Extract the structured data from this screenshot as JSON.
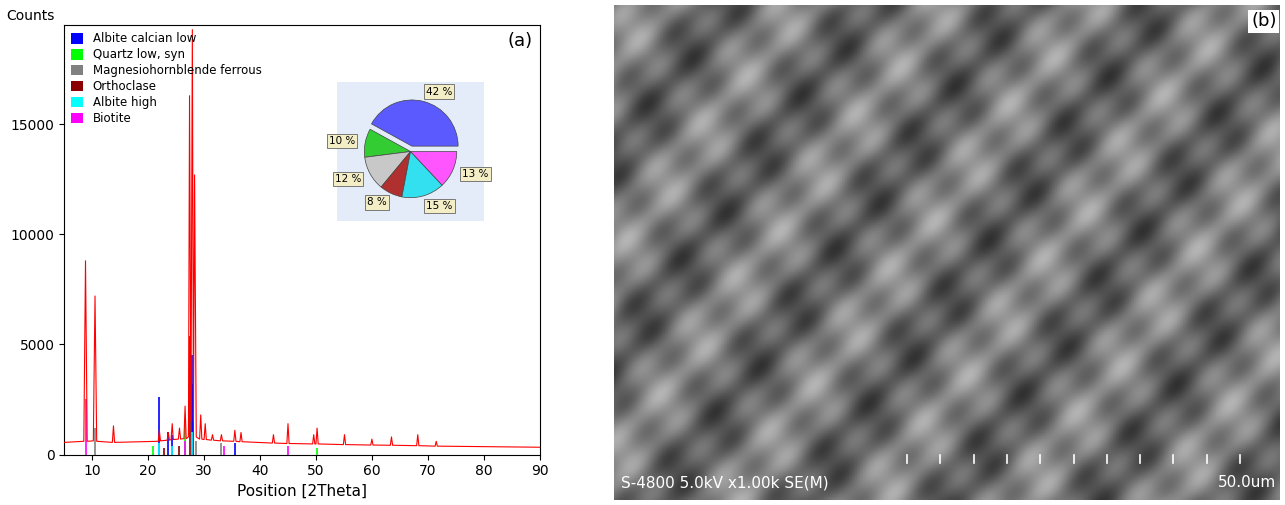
{
  "chart_data": [
    {
      "type": "line",
      "panel_label": "(a)",
      "ylabel": "Counts",
      "xlabel": "Position [2Theta]",
      "xlim": [
        5,
        90
      ],
      "ylim": [
        0,
        19500
      ],
      "xticks": [
        10,
        20,
        30,
        40,
        50,
        60,
        70,
        80,
        90
      ],
      "yticks": [
        0,
        5000,
        10000,
        15000
      ],
      "legend": "upper left",
      "series": [
        {
          "type": "line",
          "color": "#ff0000",
          "x": [
            5,
            8.5,
            8.8,
            9.1,
            10.2,
            10.5,
            10.8,
            13.6,
            13.8,
            14.0,
            21.8,
            22.0,
            22.2,
            23.4,
            23.6,
            23.8,
            24.1,
            24.3,
            24.5,
            25.4,
            25.6,
            25.8,
            26.4,
            26.6,
            26.8,
            27.2,
            27.4,
            27.65,
            27.9,
            28.1,
            28.3,
            28.6,
            29.2,
            29.4,
            29.6,
            30.0,
            30.2,
            30.4,
            31.3,
            31.5,
            31.7,
            32.9,
            33.1,
            33.3,
            35.3,
            35.5,
            35.7,
            36.4,
            36.6,
            36.8,
            42.2,
            42.4,
            42.6,
            44.8,
            45.0,
            45.2,
            49.4,
            49.6,
            49.8,
            50.0,
            50.2,
            50.4,
            54.9,
            55.1,
            55.3,
            59.8,
            60.0,
            60.2,
            63.3,
            63.5,
            63.7,
            68.0,
            68.2,
            68.4,
            71.3,
            71.5,
            71.7,
            90
          ],
          "values": [
            550,
            600,
            8800,
            600,
            620,
            7200,
            600,
            550,
            1300,
            550,
            600,
            1100,
            620,
            650,
            1000,
            650,
            680,
            1400,
            680,
            700,
            1200,
            700,
            720,
            2200,
            720,
            800,
            16300,
            1500,
            19300,
            1500,
            12700,
            800,
            700,
            1800,
            700,
            680,
            1400,
            680,
            650,
            900,
            650,
            620,
            900,
            620,
            600,
            1100,
            600,
            580,
            1000,
            580,
            520,
            900,
            520,
            500,
            1400,
            500,
            480,
            900,
            480,
            480,
            1200,
            480,
            450,
            900,
            450,
            430,
            700,
            430,
            420,
            800,
            420,
            400,
            900,
            400,
            380,
            600,
            380,
            330
          ]
        },
        {
          "type": "stem",
          "name": "Albite calcian low",
          "color": "#0000ff",
          "x": [
            22.0,
            23.6,
            24.3,
            27.9,
            28.1,
            35.5
          ],
          "values": [
            2600,
            1000,
            900,
            4500,
            3200,
            500
          ]
        },
        {
          "type": "stem",
          "name": "Quartz low, syn",
          "color": "#00ff00",
          "x": [
            20.9,
            26.6,
            50.1
          ],
          "values": [
            400,
            1500,
            300
          ]
        },
        {
          "type": "stem",
          "name": "Magnesiohornblende ferrous",
          "color": "#808080",
          "x": [
            10.5,
            28.6,
            33.1
          ],
          "values": [
            1200,
            600,
            500
          ]
        },
        {
          "type": "stem",
          "name": "Orthoclase",
          "color": "#8b0000",
          "x": [
            22.8,
            25.6,
            27.5
          ],
          "values": [
            300,
            400,
            5400
          ]
        },
        {
          "type": "stem",
          "name": "Albite high",
          "color": "#00ffff",
          "x": [
            22.0,
            24.2,
            27.8
          ],
          "values": [
            500,
            400,
            1000
          ]
        },
        {
          "type": "stem",
          "name": "Biotite",
          "color": "#ff00ff",
          "x": [
            8.8,
            26.6,
            33.6,
            45.0
          ],
          "values": [
            2500,
            600,
            400,
            400
          ]
        }
      ]
    },
    {
      "type": "pie",
      "values": [
        42,
        10,
        12,
        8,
        15,
        13
      ],
      "value_labels": [
        "42 %",
        "10 %",
        "12 %",
        "8 %",
        "15 %",
        "13 %"
      ],
      "colors": [
        "#5a5aff",
        "#33cc33",
        "#c8c8c8",
        "#b03030",
        "#33e0f0",
        "#ff55ff"
      ]
    }
  ],
  "image_panel": {
    "panel_label": "(b)",
    "caption": "S-4800 5.0kV x1.00k SE(M)",
    "scale_label": "50.0um"
  }
}
